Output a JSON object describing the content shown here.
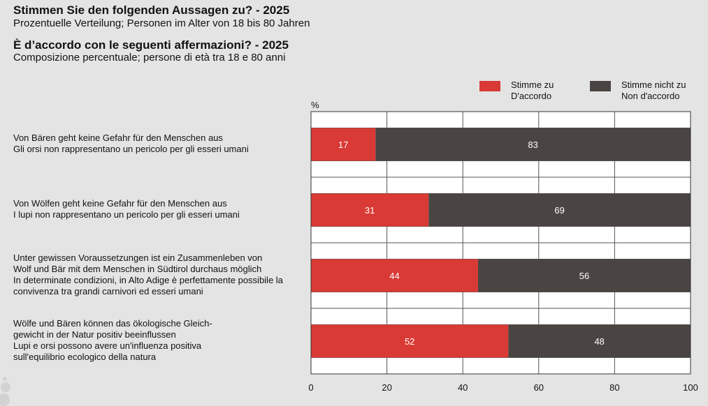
{
  "header": {
    "title_de": "Stimmen Sie den folgenden Aussagen zu? - 2025",
    "subtitle_de": "Prozentuelle Verteilung; Personen im Alter von 18 bis 80 Jahren",
    "title_it": "È d’accordo con le seguenti affermazioni? - 2025",
    "subtitle_it": "Composizione percentuale; persone di età tra 18 e 80 anni"
  },
  "chart_data": {
    "type": "bar",
    "orientation": "horizontal",
    "stacked": true,
    "unit_label": "%",
    "categories": [
      [
        "Von Bären geht keine Gefahr für den Menschen aus",
        "Gli orsi non rappresentano un pericolo per gli esseri umani"
      ],
      [
        "Von Wölfen geht keine Gefahr für den Menschen aus",
        "I lupi non rappresentano un pericolo per gli esseri umani"
      ],
      [
        "Unter gewissen Voraussetzungen ist ein Zusammenleben von",
        "Wolf und Bär mit dem Menschen in Südtirol durchaus möglich",
        "In determinate condizioni, in Alto Adige è perfettamente possibile la",
        "convivenza tra grandi carnivori ed esseri umani"
      ],
      [
        "Wölfe und Bären können das ökologische Gleich-",
        "gewicht in der Natur positiv beeinflussen",
        "Lupi e orsi possono avere un'influenza positiva",
        "sull'equilibrio ecologico della natura"
      ]
    ],
    "series": [
      {
        "name": [
          "Stimme zu",
          "D'accordo"
        ],
        "color": "#d93a35",
        "values": [
          17,
          31,
          44,
          52
        ]
      },
      {
        "name": [
          "Stimme nicht zu",
          "Non d'accordo"
        ],
        "color": "#4a4543",
        "values": [
          83,
          69,
          56,
          48
        ]
      }
    ],
    "xlim": [
      0,
      100
    ],
    "xticks": [
      "0",
      "20",
      "40",
      "60",
      "80",
      "100"
    ],
    "grid": true,
    "legend_position": "top-right"
  }
}
